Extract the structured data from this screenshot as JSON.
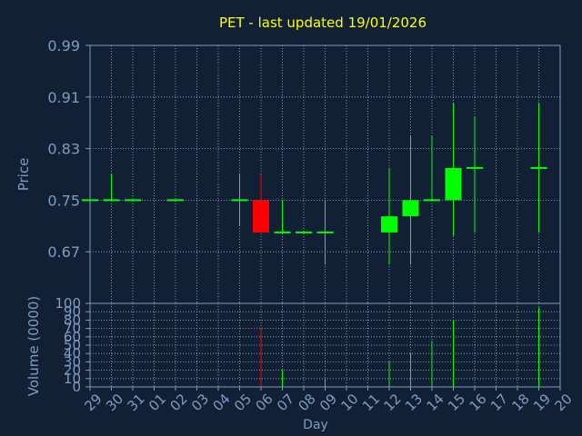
{
  "colors": {
    "background": "#112035",
    "axis": "#7f9cc0",
    "grid": "#9fb3cc",
    "title": "#ffff00",
    "text": "#7f9cc0",
    "up": "#00ff00",
    "down": "#ff0000",
    "neutral": "#00ff00"
  },
  "chart_data": [
    {
      "type": "candlestick",
      "title": "PET - last updated 19/01/2026",
      "ylabel": "Price",
      "ylim": [
        0.59,
        0.99
      ],
      "yticks": [
        "0.99",
        "0.91",
        "0.83",
        "0.75",
        "0.67"
      ],
      "ytick_values": [
        0.99,
        0.91,
        0.83,
        0.75,
        0.67
      ],
      "grid": true,
      "categories": [
        "29",
        "30",
        "31",
        "01",
        "02",
        "03",
        "04",
        "05",
        "06",
        "07",
        "08",
        "09",
        "10",
        "11",
        "12",
        "13",
        "14",
        "15",
        "16",
        "17",
        "18",
        "19",
        "20"
      ],
      "candles": [
        {
          "x": "29",
          "open": 0.75,
          "high": 0.75,
          "low": 0.75,
          "close": 0.75
        },
        {
          "x": "30",
          "open": 0.75,
          "high": 0.79,
          "low": 0.75,
          "close": 0.75
        },
        {
          "x": "31",
          "open": 0.75,
          "high": 0.75,
          "low": 0.75,
          "close": 0.75
        },
        {
          "x": "02",
          "open": 0.75,
          "high": 0.75,
          "low": 0.75,
          "close": 0.75
        },
        {
          "x": "05",
          "open": 0.75,
          "high": 0.79,
          "low": 0.71,
          "close": 0.75
        },
        {
          "x": "06",
          "open": 0.75,
          "high": 0.79,
          "low": 0.7,
          "close": 0.7
        },
        {
          "x": "07",
          "open": 0.7,
          "high": 0.75,
          "low": 0.7,
          "close": 0.7
        },
        {
          "x": "08",
          "open": 0.7,
          "high": 0.7,
          "low": 0.7,
          "close": 0.7
        },
        {
          "x": "09",
          "open": 0.7,
          "high": 0.75,
          "low": 0.65,
          "close": 0.7
        },
        {
          "x": "12",
          "open": 0.7,
          "high": 0.8,
          "low": 0.65,
          "close": 0.725
        },
        {
          "x": "13",
          "open": 0.725,
          "high": 0.85,
          "low": 0.65,
          "close": 0.75
        },
        {
          "x": "14",
          "open": 0.75,
          "high": 0.85,
          "low": 0.75,
          "close": 0.75
        },
        {
          "x": "15",
          "open": 0.75,
          "high": 0.9,
          "low": 0.695,
          "close": 0.8
        },
        {
          "x": "16",
          "open": 0.8,
          "high": 0.88,
          "low": 0.7,
          "close": 0.8
        },
        {
          "x": "19",
          "open": 0.8,
          "high": 0.9,
          "low": 0.7,
          "close": 0.8
        }
      ]
    },
    {
      "type": "bar",
      "ylabel": "Volume (0000)",
      "xlabel": "Day",
      "ylim": [
        0,
        100
      ],
      "yticks": [
        "100",
        "90",
        "80",
        "70",
        "60",
        "50",
        "40",
        "30",
        "20",
        "10",
        "0"
      ],
      "ytick_values": [
        100,
        90,
        80,
        70,
        60,
        50,
        40,
        30,
        20,
        10,
        0
      ],
      "grid": true,
      "categories": [
        "29",
        "30",
        "31",
        "01",
        "02",
        "03",
        "04",
        "05",
        "06",
        "07",
        "08",
        "09",
        "10",
        "11",
        "12",
        "13",
        "14",
        "15",
        "16",
        "17",
        "18",
        "19",
        "20"
      ],
      "bars": [
        {
          "x": "06",
          "value": 70,
          "direction": "down"
        },
        {
          "x": "07",
          "value": 20,
          "direction": "up"
        },
        {
          "x": "09",
          "value": 10,
          "direction": "up"
        },
        {
          "x": "12",
          "value": 30,
          "direction": "up"
        },
        {
          "x": "13",
          "value": 40,
          "direction": "up"
        },
        {
          "x": "14",
          "value": 55,
          "direction": "up"
        },
        {
          "x": "15",
          "value": 80,
          "direction": "up"
        },
        {
          "x": "19",
          "value": 95,
          "direction": "up"
        }
      ]
    }
  ]
}
